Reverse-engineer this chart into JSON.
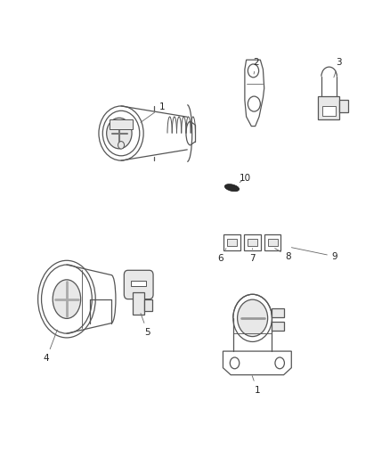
{
  "background_color": "#ffffff",
  "line_color": "#555555",
  "label_color": "#222222",
  "fig_width": 4.38,
  "fig_height": 5.33,
  "dpi": 100
}
